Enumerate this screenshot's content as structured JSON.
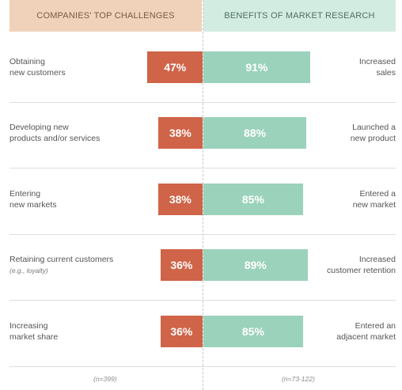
{
  "header": {
    "left": "COMPANIES' TOP CHALLENGES",
    "right": "BENEFITS OF MARKET RESEARCH"
  },
  "footer": {
    "left_n": "(n=399)",
    "right_n": "(n=73-122)"
  },
  "colors": {
    "challenge_bar": "#cf6448",
    "benefit_bar": "#9bd2bc",
    "left_header_bg": "#efd2b9",
    "right_header_bg": "#d3ece2"
  },
  "chart_data": {
    "type": "bar",
    "orientation": "horizontal-diverging",
    "rows": [
      {
        "challenge": "Obtaining\nnew customers",
        "challenge_note": "",
        "challenge_value": 47,
        "challenge_label": "47%",
        "benefit": "Increased\nsales",
        "benefit_value": 91,
        "benefit_label": "91%"
      },
      {
        "challenge": "Developing new\nproducts and/or services",
        "challenge_note": "",
        "challenge_value": 38,
        "challenge_label": "38%",
        "benefit": "Launched a\nnew product",
        "benefit_value": 88,
        "benefit_label": "88%"
      },
      {
        "challenge": "Entering\nnew markets",
        "challenge_note": "",
        "challenge_value": 38,
        "challenge_label": "38%",
        "benefit": "Entered a\nnew market",
        "benefit_value": 85,
        "benefit_label": "85%"
      },
      {
        "challenge": "Retaining current customers",
        "challenge_note": "(e.g., loyalty)",
        "challenge_value": 36,
        "challenge_label": "36%",
        "benefit": "Increased\ncustomer retention",
        "benefit_value": 89,
        "benefit_label": "89%"
      },
      {
        "challenge": "Increasing\nmarket share",
        "challenge_note": "",
        "challenge_value": 36,
        "challenge_label": "36%",
        "benefit": "Entered an\nadjacent market",
        "benefit_value": 85,
        "benefit_label": "85%"
      }
    ]
  }
}
